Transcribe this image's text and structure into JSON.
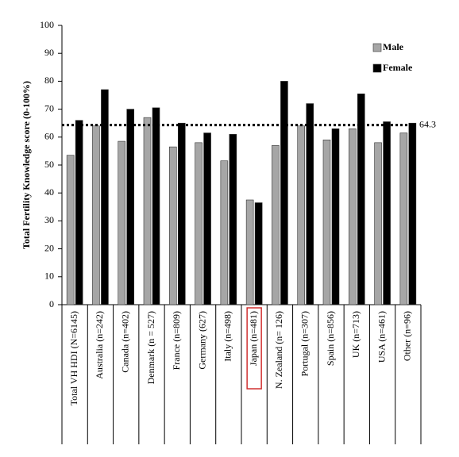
{
  "chart_data": {
    "type": "bar",
    "y_label": "Total Fertility Knowledge score (0-100%)",
    "categories": [
      "Total VH HDI (N=6145)",
      "Australia (n=242)",
      "Canada (n=402)",
      "Denmark (n = 527)",
      "France (n=809)",
      "Germany (627)",
      "Italy (n=498)",
      "Japan (n=481)",
      "N. Zealand (n= 126)",
      "Portugal (n=307)",
      "Spain (n=856)",
      "UK (n=713)",
      "USA (n=461)",
      "Other (n=96)"
    ],
    "series": [
      {
        "name": "Male",
        "color": "#a6a6a6",
        "values": [
          53.5,
          64,
          58.5,
          67,
          56.5,
          58,
          51.5,
          37.5,
          57,
          64,
          59,
          63,
          58,
          61.5
        ]
      },
      {
        "name": "Female",
        "color": "#000000",
        "values": [
          66,
          77,
          70,
          70.5,
          65,
          61.5,
          61,
          36.5,
          80,
          72,
          63,
          75.5,
          65.5,
          65
        ]
      }
    ],
    "reference_line": 64.3,
    "highlight": {
      "category": 7,
      "color": "#d03030"
    },
    "ylim": [
      0,
      100
    ],
    "yticks": [
      0,
      10,
      20,
      30,
      40,
      50,
      60,
      70,
      80,
      90,
      100
    ],
    "grid": false,
    "legend": "top-right"
  }
}
